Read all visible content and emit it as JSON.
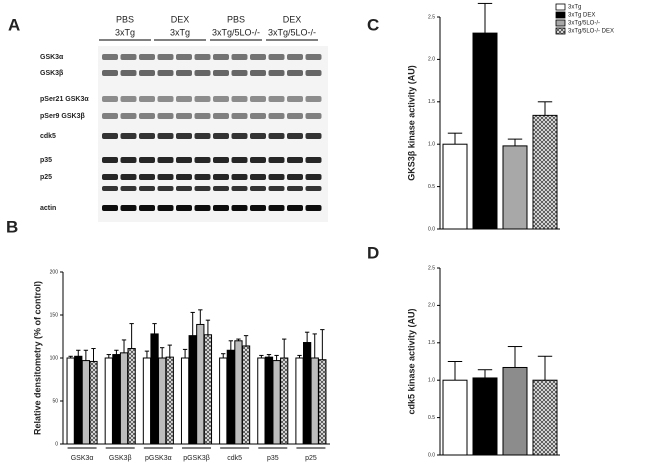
{
  "panel_labels": [
    "A",
    "B",
    "C",
    "D"
  ],
  "blot": {
    "lanes": [
      {
        "treatment": "PBS",
        "genotype": "3xTg"
      },
      {
        "treatment": "DEX",
        "genotype": "3xTg"
      },
      {
        "treatment": "PBS",
        "genotype": "3xTg/5LO-/-"
      },
      {
        "treatment": "DEX",
        "genotype": "3xTg/5LO-/-"
      }
    ],
    "rows": [
      "GSK3α",
      "GSK3β",
      "pSer21 GSK3α",
      "pSer9 GSK3β",
      "cdk5",
      "p35",
      "p25",
      "actin"
    ]
  },
  "chart_data": [
    {
      "type": "bar",
      "ylabel": "Relative densitometry (% of control)",
      "categories": [
        "GSK3α",
        "GSK3β",
        "pGSK3α",
        "pGSK3β",
        "cdk5",
        "p35",
        "p25"
      ],
      "series": [
        {
          "color": "#ffffff",
          "values": [
            100,
            100,
            100,
            100,
            100,
            100,
            100
          ],
          "errors": [
            2,
            4,
            8,
            10,
            5,
            3,
            3
          ]
        },
        {
          "color": "#000000",
          "values": [
            102,
            104,
            128,
            126,
            109,
            101,
            118
          ],
          "errors": [
            7,
            5,
            12,
            27,
            11,
            3,
            12
          ]
        },
        {
          "color": "#bdbdbd",
          "values": [
            97,
            106,
            100,
            139,
            120,
            97,
            100
          ],
          "errors": [
            12,
            15,
            12,
            17,
            2,
            6,
            28
          ]
        },
        {
          "color": "#777777",
          "hatch": true,
          "values": [
            96,
            111,
            101,
            127,
            114,
            100,
            98
          ],
          "errors": [
            15,
            29,
            14,
            17,
            12,
            22,
            35
          ]
        }
      ],
      "ylim": [
        0,
        200
      ],
      "yticks": [
        0,
        50,
        100,
        150,
        200
      ]
    },
    {
      "type": "bar",
      "ylabel": "GKS3β kinase activity (AU)",
      "annotation": "*",
      "legend": "upper right",
      "categories": [
        null
      ],
      "series": [
        {
          "name": "3xTg",
          "color": "#ffffff",
          "values": [
            1.0
          ],
          "errors": [
            0.13
          ]
        },
        {
          "name": "3xTg DEX",
          "color": "#000000",
          "values": [
            2.31
          ],
          "errors": [
            0.35
          ]
        },
        {
          "name": "3xTg/5LO-/-",
          "color": "#a8a8a8",
          "values": [
            0.98
          ],
          "errors": [
            0.08
          ]
        },
        {
          "name": "3xTg/5LO-/- DEX",
          "color": "#777777",
          "hatch": true,
          "values": [
            1.34
          ],
          "errors": [
            0.16
          ]
        }
      ],
      "ylim": [
        0,
        2.5
      ],
      "yticks": [
        {
          "value": 0,
          "label": "0.0"
        },
        {
          "value": 0.5,
          "label": "0.5"
        },
        {
          "value": 1,
          "label": "1.0"
        },
        {
          "value": 1.5,
          "label": "1.5"
        },
        {
          "value": 2,
          "label": "2.0"
        },
        {
          "value": 2.5,
          "label": "2.5"
        }
      ]
    },
    {
      "type": "bar",
      "ylabel": "cdk5 kinase activity (AU)",
      "categories": [
        null
      ],
      "series": [
        {
          "color": "#ffffff",
          "values": [
            1.0
          ],
          "errors": [
            0.25
          ]
        },
        {
          "color": "#000000",
          "values": [
            1.03
          ],
          "errors": [
            0.11
          ]
        },
        {
          "color": "#8c8c8c",
          "values": [
            1.17
          ],
          "errors": [
            0.28
          ]
        },
        {
          "color": "#777777",
          "hatch": true,
          "values": [
            1.0
          ],
          "errors": [
            0.32
          ]
        }
      ],
      "ylim": [
        0,
        2.5
      ],
      "yticks": [
        {
          "value": 0,
          "label": "0.0"
        },
        {
          "value": 0.5,
          "label": "0.5"
        },
        {
          "value": 1,
          "label": "1.0"
        },
        {
          "value": 1.5,
          "label": "1.5"
        },
        {
          "value": 2,
          "label": "2.0"
        },
        {
          "value": 2.5,
          "label": "2.5"
        }
      ]
    }
  ]
}
